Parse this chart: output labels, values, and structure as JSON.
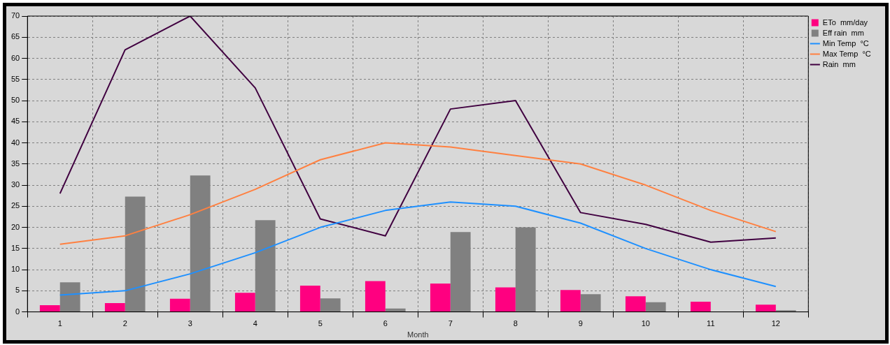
{
  "chart_data": {
    "type": "bar",
    "xlabel": "Month",
    "categories": [
      "1",
      "2",
      "3",
      "4",
      "5",
      "6",
      "7",
      "8",
      "9",
      "10",
      "11",
      "12"
    ],
    "series": [
      {
        "name": "ETo  mm/day",
        "color": "#ff0080",
        "values": [
          1.6,
          2.1,
          3.1,
          4.5,
          6.2,
          7.3,
          6.7,
          5.8,
          5.2,
          3.7,
          2.4,
          1.7
        ]
      },
      {
        "name": "Eff rain  mm",
        "color": "#808080",
        "values": [
          7.0,
          27.3,
          32.3,
          21.7,
          3.2,
          0.8,
          18.9,
          20.0,
          4.2,
          2.3,
          0,
          0.4
        ]
      },
      {
        "name": "Min Temp  °C",
        "type": "line",
        "color": "#1e90ff",
        "values": [
          4,
          5,
          9,
          14,
          20,
          24,
          26,
          25,
          21,
          15,
          10,
          6
        ]
      },
      {
        "name": "Max Temp  °C",
        "type": "line",
        "color": "#ff8040",
        "values": [
          16,
          18,
          23,
          29,
          36,
          40,
          39,
          37,
          35,
          30,
          24,
          19
        ]
      },
      {
        "name": "Rain  mm",
        "type": "line",
        "color": "#400040",
        "values": [
          28,
          62,
          70,
          53,
          22,
          18,
          48,
          50,
          23.5,
          20.7,
          16.5,
          17.5
        ]
      }
    ],
    "ylim": [
      0,
      70
    ],
    "yticks": [
      0,
      5,
      10,
      15,
      20,
      25,
      30,
      35,
      40,
      45,
      50,
      55,
      60,
      65,
      70
    ],
    "grid": true,
    "legend": "right",
    "marker": "none",
    "line_style": "solid"
  }
}
